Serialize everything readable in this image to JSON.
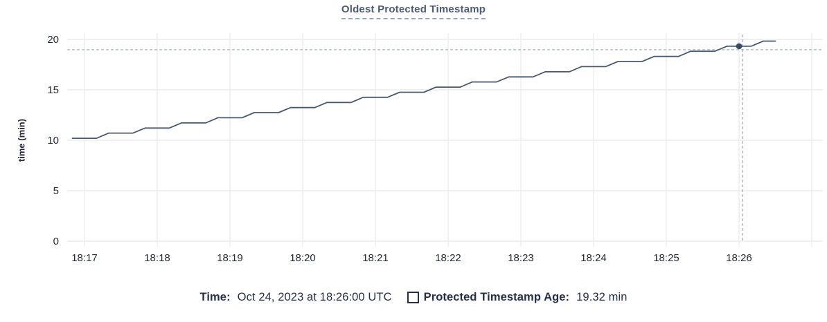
{
  "colors": {
    "background": "#ffffff",
    "line": "#475872",
    "dot": "#394a67",
    "crosshair": "#a6b5c1",
    "grid": "#ececec",
    "axis_text": "#242a35",
    "title": "#4c5a78",
    "title_underline": "#9aa6bb",
    "navy": "#22304e"
  },
  "legend": {
    "time_label": "Time:",
    "time_value": "Oct 24, 2023 at 18:26:00 UTC",
    "series_label": "Protected Timestamp Age:",
    "series_value": "19.32 min"
  },
  "chart_data": {
    "type": "line",
    "title": "Oldest Protected Timestamp",
    "xlabel": "",
    "ylabel": "time (min)",
    "ylim": [
      0,
      20
    ],
    "yticks": [
      0,
      5,
      10,
      15,
      20
    ],
    "xticks": [
      "18:17",
      "18:18",
      "18:19",
      "18:20",
      "18:21",
      "18:22",
      "18:23",
      "18:24",
      "18:25",
      "18:26"
    ],
    "grid": true,
    "legend_position": "bottom",
    "hover": {
      "time": "18:26:00",
      "value": 19.32
    },
    "series": [
      {
        "name": "Protected Timestamp Age",
        "unit": "min",
        "points": [
          [
            "18:16:50",
            10.2
          ],
          [
            "18:17:00",
            10.2
          ],
          [
            "18:17:10",
            10.2
          ],
          [
            "18:17:20",
            10.71
          ],
          [
            "18:17:30",
            10.71
          ],
          [
            "18:17:40",
            10.71
          ],
          [
            "18:17:50",
            11.21
          ],
          [
            "18:18:00",
            11.21
          ],
          [
            "18:18:10",
            11.21
          ],
          [
            "18:18:20",
            11.72
          ],
          [
            "18:18:30",
            11.72
          ],
          [
            "18:18:40",
            11.72
          ],
          [
            "18:18:50",
            12.23
          ],
          [
            "18:19:00",
            12.23
          ],
          [
            "18:19:10",
            12.23
          ],
          [
            "18:19:20",
            12.74
          ],
          [
            "18:19:30",
            12.74
          ],
          [
            "18:19:40",
            12.74
          ],
          [
            "18:19:50",
            13.24
          ],
          [
            "18:20:00",
            13.24
          ],
          [
            "18:20:10",
            13.24
          ],
          [
            "18:20:20",
            13.75
          ],
          [
            "18:20:30",
            13.75
          ],
          [
            "18:20:40",
            13.75
          ],
          [
            "18:20:50",
            14.26
          ],
          [
            "18:21:00",
            14.26
          ],
          [
            "18:21:10",
            14.26
          ],
          [
            "18:21:20",
            14.76
          ],
          [
            "18:21:30",
            14.76
          ],
          [
            "18:21:40",
            14.76
          ],
          [
            "18:21:50",
            15.27
          ],
          [
            "18:22:00",
            15.27
          ],
          [
            "18:22:10",
            15.27
          ],
          [
            "18:22:20",
            15.78
          ],
          [
            "18:22:30",
            15.78
          ],
          [
            "18:22:40",
            15.78
          ],
          [
            "18:22:50",
            16.28
          ],
          [
            "18:23:00",
            16.28
          ],
          [
            "18:23:10",
            16.28
          ],
          [
            "18:23:20",
            16.79
          ],
          [
            "18:23:30",
            16.79
          ],
          [
            "18:23:40",
            16.79
          ],
          [
            "18:23:50",
            17.3
          ],
          [
            "18:24:00",
            17.3
          ],
          [
            "18:24:10",
            17.3
          ],
          [
            "18:24:20",
            17.81
          ],
          [
            "18:24:30",
            17.81
          ],
          [
            "18:24:40",
            17.81
          ],
          [
            "18:24:50",
            18.31
          ],
          [
            "18:25:00",
            18.31
          ],
          [
            "18:25:10",
            18.31
          ],
          [
            "18:25:20",
            18.82
          ],
          [
            "18:25:30",
            18.82
          ],
          [
            "18:25:40",
            18.82
          ],
          [
            "18:25:50",
            19.32
          ],
          [
            "18:26:00",
            19.32
          ],
          [
            "18:26:10",
            19.32
          ],
          [
            "18:26:20",
            19.83
          ],
          [
            "18:26:30",
            19.83
          ]
        ]
      }
    ]
  }
}
